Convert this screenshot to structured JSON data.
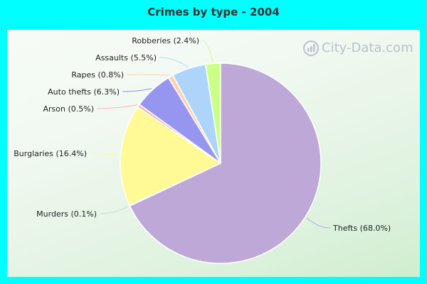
{
  "chart_data": {
    "type": "pie",
    "title": "Crimes by type - 2004",
    "slices": [
      {
        "label": "Thefts (68.0%)",
        "value": 68.0,
        "color": "#bda8d8"
      },
      {
        "label": "Murders (0.1%)",
        "value": 0.1,
        "color": "#c9e4c2"
      },
      {
        "label": "Burglaries (16.4%)",
        "value": 16.4,
        "color": "#fffa96"
      },
      {
        "label": "Arson (0.5%)",
        "value": 0.5,
        "color": "#ffb3b3"
      },
      {
        "label": "Auto thefts (6.3%)",
        "value": 6.3,
        "color": "#9696f0"
      },
      {
        "label": "Rapes (0.8%)",
        "value": 0.8,
        "color": "#ffd2aa"
      },
      {
        "label": "Assaults (5.5%)",
        "value": 5.5,
        "color": "#add5fb"
      },
      {
        "label": "Robberies (2.4%)",
        "value": 2.4,
        "color": "#ccff88"
      }
    ]
  },
  "watermark": {
    "text": "City-Data.com",
    "icon": "city-data-logo-icon"
  }
}
